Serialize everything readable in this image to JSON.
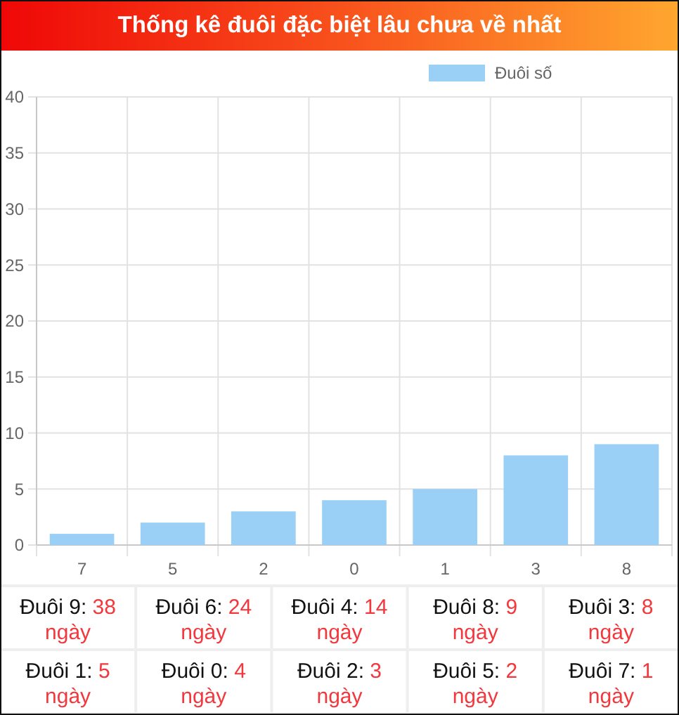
{
  "chart_data": {
    "type": "bar",
    "title": "Thống kê đuôi đặc biệt lâu chưa về nhất",
    "categories": [
      "7",
      "5",
      "2",
      "0",
      "1",
      "3",
      "8"
    ],
    "series": [
      {
        "name": "Đuôi số",
        "color": "#9ad0f5",
        "values": [
          1,
          2,
          3,
          4,
          5,
          8,
          9
        ]
      }
    ],
    "ylim": [
      0,
      40
    ],
    "yticks": [
      0,
      5,
      10,
      15,
      20,
      25,
      30,
      35,
      40
    ],
    "grid": true,
    "legend": "top",
    "annotations": [
      "Đuôi 9: 38 ngày",
      "Đuôi 6: 24 ngày",
      "Đuôi 4: 14 ngày",
      "Đuôi 8: 9 ngày",
      "Đuôi 3: 8 ngày",
      "Đuôi 1: 5 ngày",
      "Đuôi 0: 4 ngày",
      "Đuôi 2: 3 ngày",
      "Đuôi 5: 2 ngày",
      "Đuôi 7: 1 ngày"
    ]
  }
}
